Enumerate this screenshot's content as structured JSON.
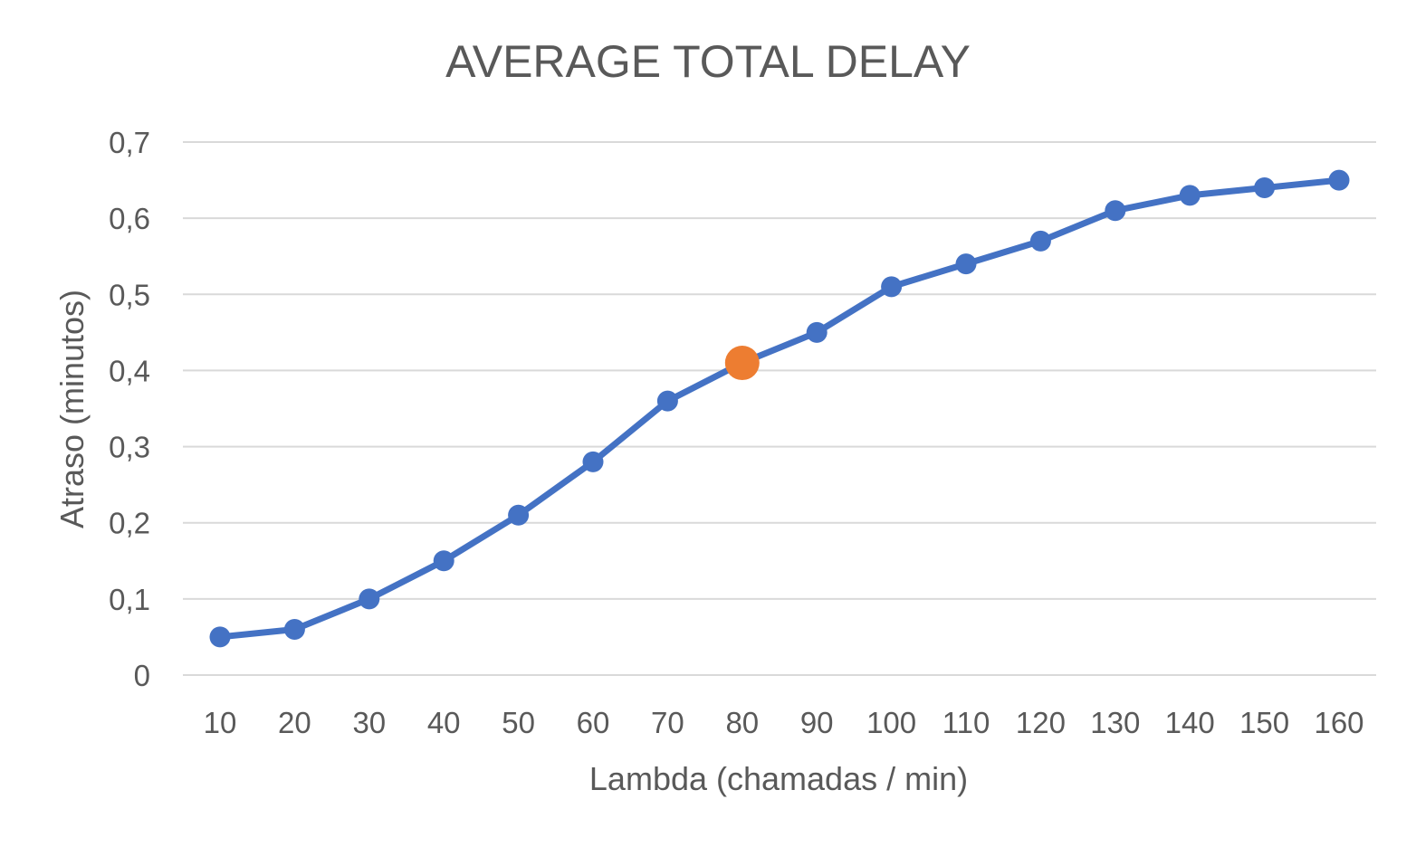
{
  "chart_data": {
    "type": "line",
    "title": "AVERAGE TOTAL DELAY",
    "xlabel": "Lambda (chamadas / min)",
    "ylabel": "Atraso (minutos)",
    "categories": [
      "10",
      "20",
      "30",
      "40",
      "50",
      "60",
      "70",
      "80",
      "90",
      "100",
      "110",
      "120",
      "130",
      "140",
      "150",
      "160"
    ],
    "series": [
      {
        "values": [
          0.05,
          0.06,
          0.1,
          0.15,
          0.21,
          0.28,
          0.36,
          0.41,
          0.45,
          0.51,
          0.54,
          0.57,
          0.61,
          0.63,
          0.64,
          0.65
        ]
      }
    ],
    "highlight": {
      "category": "80",
      "value": 0.41
    },
    "ylim": [
      0,
      0.7
    ],
    "yticks": [
      "0",
      "0,1",
      "0,2",
      "0,3",
      "0,4",
      "0,5",
      "0,6",
      "0,7"
    ],
    "grid": true,
    "legend": "none",
    "colors": {
      "series": "#4472c4",
      "highlight": "#ed7d31",
      "grid": "#d9d9d9",
      "text": "#595959"
    }
  }
}
